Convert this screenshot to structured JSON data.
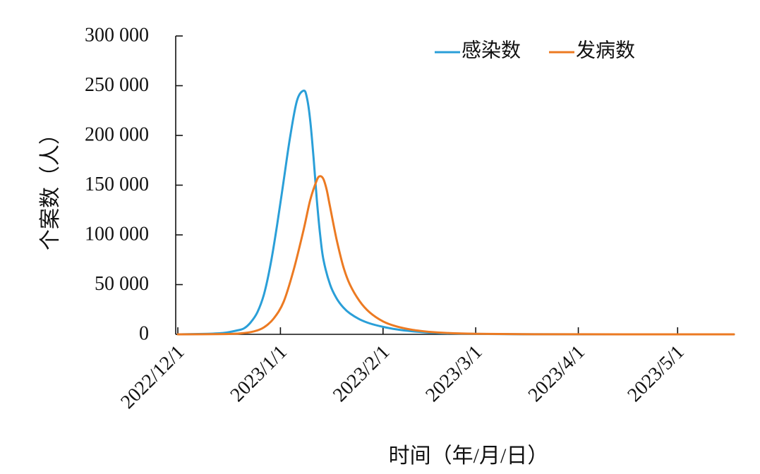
{
  "chart_data": {
    "type": "line",
    "xlabel": "时间（年/月/日）",
    "ylabel": "个案数（人）",
    "ylim": [
      0,
      300000
    ],
    "yticks": [
      0,
      50000,
      100000,
      150000,
      200000,
      250000,
      300000
    ],
    "ytick_labels": [
      "0",
      "50 000",
      "100 000",
      "150 000",
      "200 000",
      "250 000",
      "300 000"
    ],
    "xlim": [
      "2022-12-01",
      "2023-05-18"
    ],
    "xticks": [
      "2022-12-01",
      "2023-01-01",
      "2023-02-01",
      "2023-03-01",
      "2023-04-01",
      "2023-05-01"
    ],
    "xtick_labels": [
      "2022/12/1",
      "2023/1/1",
      "2023/2/1",
      "2023/3/1",
      "2023/4/1",
      "2023/5/1"
    ],
    "grid": false,
    "legend_position": "top-right",
    "series": [
      {
        "name": "感染数",
        "color": "#2a9fd8",
        "x": [
          "2022-12-01",
          "2022-12-10",
          "2022-12-15",
          "2022-12-19",
          "2022-12-21",
          "2022-12-23",
          "2022-12-25",
          "2022-12-27",
          "2022-12-29",
          "2022-12-31",
          "2023-01-02",
          "2023-01-04",
          "2023-01-06",
          "2023-01-08",
          "2023-01-09",
          "2023-01-10",
          "2023-01-11",
          "2023-01-12",
          "2023-01-13",
          "2023-01-14",
          "2023-01-16",
          "2023-01-18",
          "2023-01-20",
          "2023-01-22",
          "2023-01-25",
          "2023-01-28",
          "2023-02-01",
          "2023-02-05",
          "2023-02-10",
          "2023-02-15",
          "2023-02-20",
          "2023-03-01",
          "2023-03-15",
          "2023-04-01",
          "2023-05-18"
        ],
        "values": [
          0,
          500,
          1500,
          4000,
          6000,
          12000,
          22000,
          40000,
          70000,
          110000,
          155000,
          200000,
          235000,
          245000,
          238000,
          215000,
          178000,
          135000,
          100000,
          75000,
          50000,
          36000,
          27000,
          21000,
          15000,
          11000,
          7500,
          5000,
          3000,
          1800,
          1000,
          400,
          100,
          30,
          0
        ]
      },
      {
        "name": "发病数",
        "color": "#ec7a22",
        "x": [
          "2022-12-01",
          "2022-12-15",
          "2022-12-20",
          "2022-12-24",
          "2022-12-27",
          "2022-12-30",
          "2023-01-02",
          "2023-01-05",
          "2023-01-08",
          "2023-01-10",
          "2023-01-12",
          "2023-01-13",
          "2023-01-14",
          "2023-01-15",
          "2023-01-16",
          "2023-01-18",
          "2023-01-20",
          "2023-01-22",
          "2023-01-25",
          "2023-01-28",
          "2023-02-01",
          "2023-02-05",
          "2023-02-10",
          "2023-02-15",
          "2023-02-20",
          "2023-03-01",
          "2023-03-15",
          "2023-04-01",
          "2023-05-18"
        ],
        "values": [
          0,
          300,
          1000,
          3000,
          7000,
          16000,
          33000,
          65000,
          105000,
          135000,
          155000,
          159000,
          156000,
          145000,
          128000,
          95000,
          68000,
          50000,
          33000,
          22000,
          13000,
          8000,
          4500,
          2500,
          1400,
          600,
          150,
          40,
          0
        ]
      }
    ]
  }
}
